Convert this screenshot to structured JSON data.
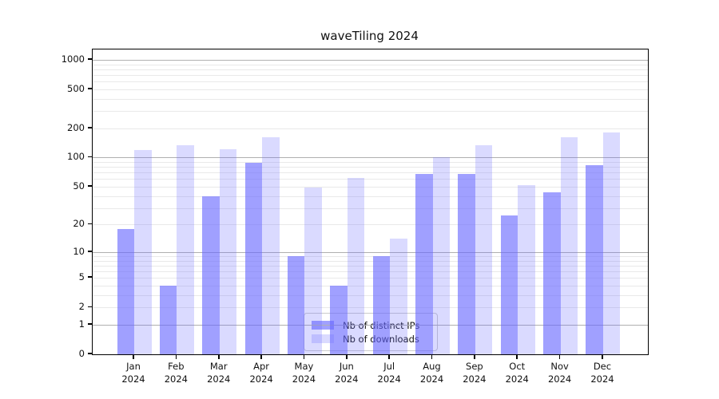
{
  "title": "waveTiling 2024",
  "chart_data": {
    "type": "bar",
    "title": "waveTiling 2024",
    "xlabel": "",
    "ylabel": "",
    "y_scale": "log1p",
    "categories": [
      "Jan",
      "Feb",
      "Mar",
      "Apr",
      "May",
      "Jun",
      "Jul",
      "Aug",
      "Sep",
      "Oct",
      "Nov",
      "Dec"
    ],
    "year_label": "2024",
    "series": [
      {
        "name": "Nb of distinct IPs",
        "color": "rgba(102,102,255,0.62)",
        "values": [
          18,
          4,
          40,
          88,
          9,
          4,
          9,
          68,
          68,
          25,
          44,
          84
        ]
      },
      {
        "name": "Nb of downloads",
        "color": "rgba(102,102,255,0.24)",
        "values": [
          120,
          134,
          123,
          161,
          49,
          62,
          14,
          100,
          134,
          52,
          161,
          181
        ]
      }
    ],
    "y_tick_values": [
      0,
      1,
      2,
      5,
      10,
      20,
      50,
      100,
      200,
      500,
      1000
    ],
    "y_tick_labels": [
      "0",
      "1",
      "2",
      "5",
      "10",
      "20",
      "50",
      "100",
      "200",
      "500",
      "1000"
    ],
    "y_major_grid": [
      1,
      10,
      100,
      1000
    ],
    "ylim_top": 1280,
    "grid": true,
    "legend_position": "lower center"
  },
  "colors": {
    "grid_major": "#b0b0b0",
    "grid_minor": "#e9e9e9",
    "axis": "#000000",
    "text": "#111111"
  }
}
